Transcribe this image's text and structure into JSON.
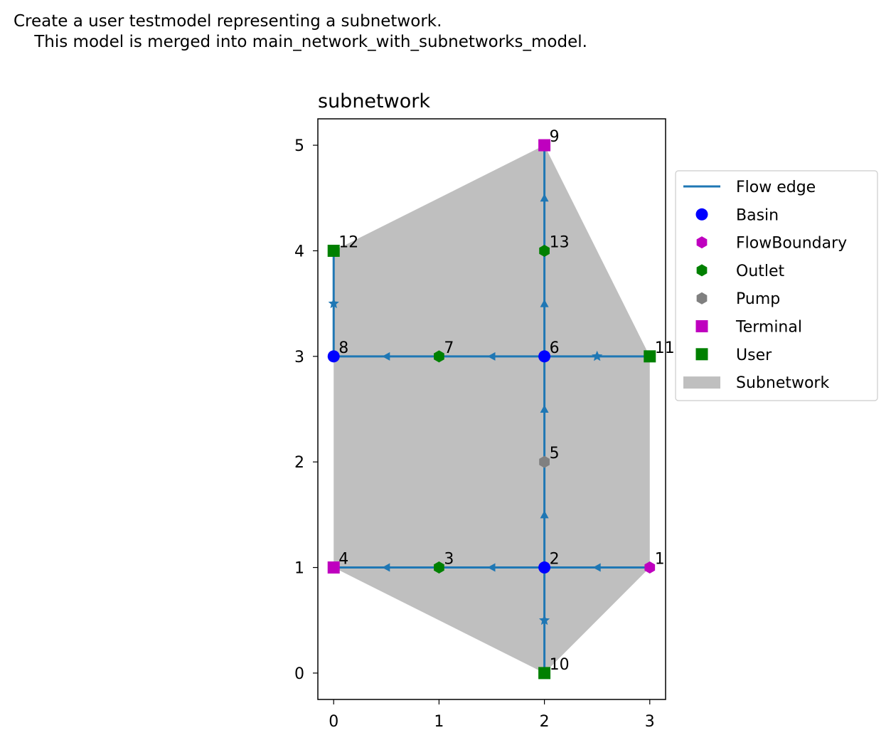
{
  "figure": {
    "suptitle": "Create a user testmodel representing a subnetwork.\n    This model is merged into main_network_with_subnetworks_model."
  },
  "chart_data": {
    "type": "scatter",
    "title": "subnetwork",
    "xlabel": "",
    "ylabel": "",
    "xlim": [
      -0.15,
      3.15
    ],
    "ylim": [
      -0.25,
      5.25
    ],
    "xticks": [
      "0",
      "1",
      "2",
      "3"
    ],
    "yticks": [
      "0",
      "1",
      "2",
      "3",
      "4",
      "5"
    ],
    "grid": false,
    "legend_position": "outside right",
    "legend": [
      "Flow edge",
      "Basin",
      "FlowBoundary",
      "Outlet",
      "Pump",
      "Terminal",
      "User",
      "Subnetwork"
    ],
    "colors": {
      "edge": "#1f77b4",
      "basin": "#0000ff",
      "flowboundary": "#bf00bf",
      "outlet": "#008000",
      "pump": "#808080",
      "terminal": "#bf00bf",
      "user": "#008000",
      "subnetwork": "#bfbfbf"
    },
    "nodes": [
      {
        "id": "1",
        "type": "FlowBoundary",
        "x": 3,
        "y": 1
      },
      {
        "id": "2",
        "type": "Basin",
        "x": 2,
        "y": 1
      },
      {
        "id": "3",
        "type": "Outlet",
        "x": 1,
        "y": 1
      },
      {
        "id": "4",
        "type": "Terminal",
        "x": 0,
        "y": 1
      },
      {
        "id": "5",
        "type": "Pump",
        "x": 2,
        "y": 2
      },
      {
        "id": "6",
        "type": "Basin",
        "x": 2,
        "y": 3
      },
      {
        "id": "7",
        "type": "Outlet",
        "x": 1,
        "y": 3
      },
      {
        "id": "8",
        "type": "Basin",
        "x": 0,
        "y": 3
      },
      {
        "id": "9",
        "type": "Terminal",
        "x": 2,
        "y": 5
      },
      {
        "id": "10",
        "type": "User",
        "x": 2,
        "y": 0
      },
      {
        "id": "11",
        "type": "User",
        "x": 3,
        "y": 3
      },
      {
        "id": "12",
        "type": "User",
        "x": 0,
        "y": 4
      },
      {
        "id": "13",
        "type": "Outlet",
        "x": 2,
        "y": 4
      }
    ],
    "edges": [
      {
        "from": "1",
        "to": "2",
        "marker": "triangle"
      },
      {
        "from": "2",
        "to": "3",
        "marker": "triangle"
      },
      {
        "from": "3",
        "to": "4",
        "marker": "triangle"
      },
      {
        "from": "2",
        "to": "5",
        "marker": "triangle"
      },
      {
        "from": "5",
        "to": "6",
        "marker": "triangle"
      },
      {
        "from": "6",
        "to": "7",
        "marker": "triangle"
      },
      {
        "from": "7",
        "to": "8",
        "marker": "triangle"
      },
      {
        "from": "6",
        "to": "13",
        "marker": "triangle"
      },
      {
        "from": "13",
        "to": "9",
        "marker": "triangle"
      },
      {
        "from": "2",
        "to": "10",
        "marker": "star"
      },
      {
        "from": "6",
        "to": "11",
        "marker": "star"
      },
      {
        "from": "8",
        "to": "12",
        "marker": "star"
      }
    ],
    "subnetwork_polygon": [
      [
        2,
        0
      ],
      [
        3,
        1
      ],
      [
        3,
        3
      ],
      [
        2,
        5
      ],
      [
        0,
        4
      ],
      [
        0,
        1
      ]
    ]
  }
}
